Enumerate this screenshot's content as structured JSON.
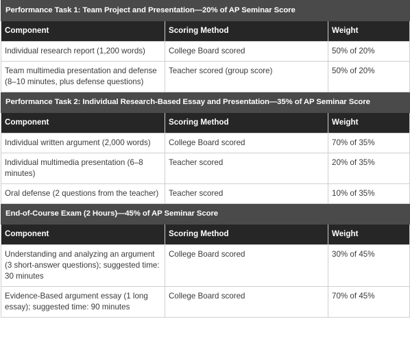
{
  "sections": [
    {
      "title": "Performance Task 1: Team Project and Presentation—20% of AP Seminar Score",
      "headers": [
        "Component",
        "Scoring Method",
        "Weight"
      ],
      "rows": [
        [
          "Individual research report (1,200 words)",
          "College Board scored",
          "50% of 20%"
        ],
        [
          "Team multimedia presentation and defense (8–10 minutes, plus defense questions)",
          "Teacher scored (group score)",
          "50% of 20%"
        ]
      ]
    },
    {
      "title": "Performance Task 2: Individual Research-Based Essay and Presentation—35% of AP Seminar Score",
      "headers": [
        "Component",
        "Scoring Method",
        "Weight"
      ],
      "rows": [
        [
          "Individual written argument (2,000 words)",
          "College Board scored",
          "70% of 35%"
        ],
        [
          "Individual multimedia presentation (6–8 minutes)",
          "Teacher scored",
          "20% of 35%"
        ],
        [
          "Oral defense (2 questions from the teacher)",
          "Teacher scored",
          "10% of 35%"
        ]
      ]
    },
    {
      "title": "End-of-Course Exam (2 Hours)—45% of AP Seminar Score",
      "headers": [
        "Component",
        "Scoring Method",
        "Weight"
      ],
      "rows": [
        [
          "Understanding and analyzing an argument (3 short-answer questions); suggested time: 30 minutes",
          "College Board scored",
          "30% of 45%"
        ],
        [
          "Evidence-Based argument essay (1 long essay); suggested time: 90 minutes",
          "College Board scored",
          "70% of 45%"
        ]
      ]
    }
  ]
}
